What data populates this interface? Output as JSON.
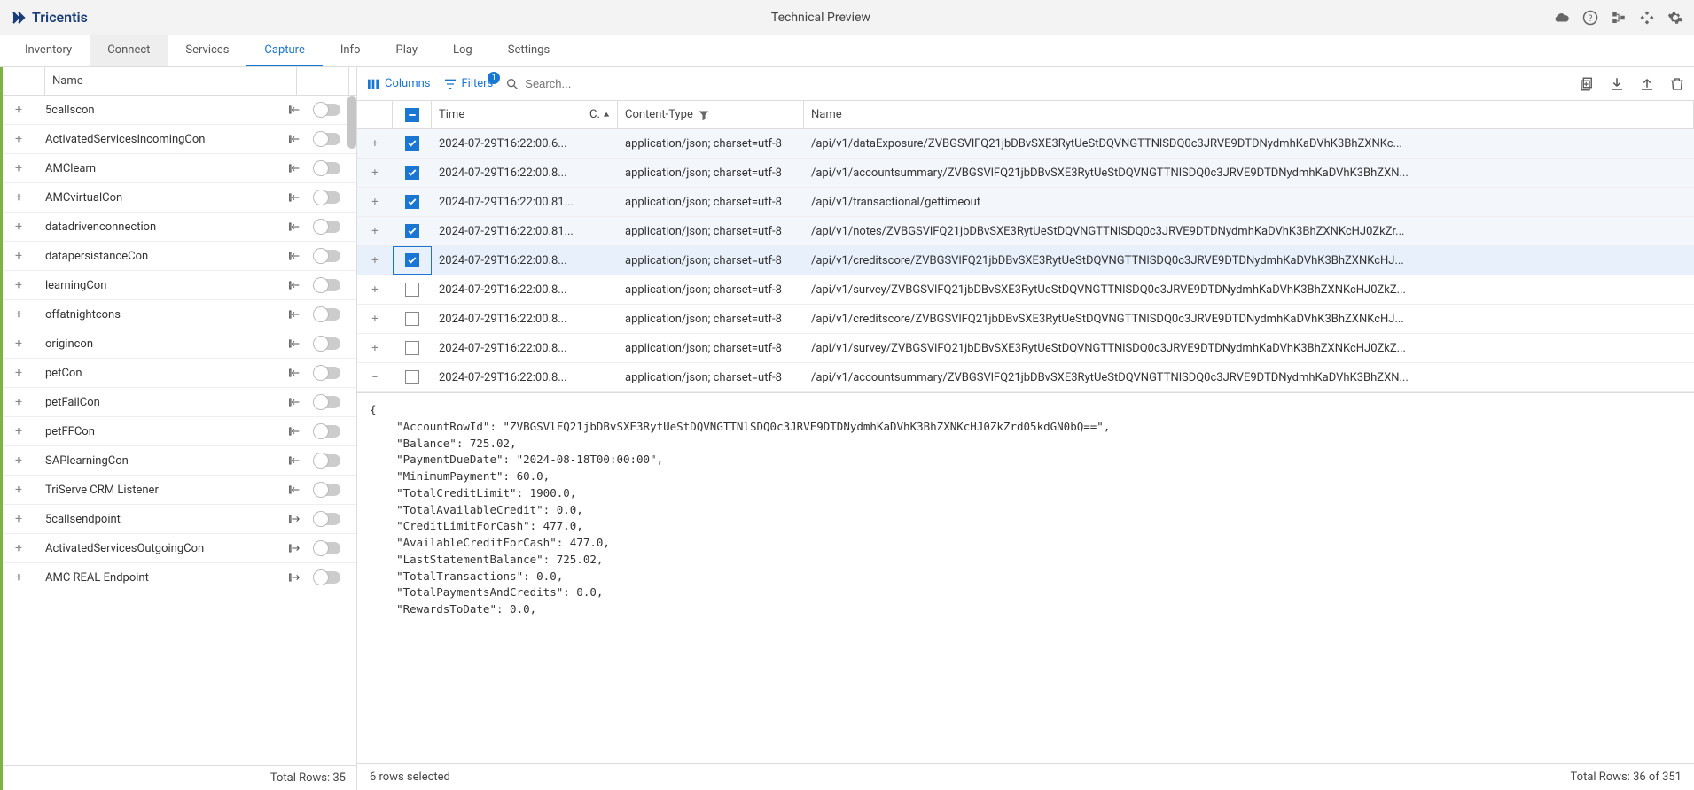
{
  "header": {
    "brand": "Tricentis",
    "title": "Technical Preview"
  },
  "tabs": [
    {
      "label": "Inventory",
      "active": false,
      "highlight": false
    },
    {
      "label": "Connect",
      "active": false,
      "highlight": true
    },
    {
      "label": "Services",
      "active": false,
      "highlight": false
    },
    {
      "label": "Capture",
      "active": true,
      "highlight": false
    },
    {
      "label": "Info",
      "active": false,
      "highlight": false
    },
    {
      "label": "Play",
      "active": false,
      "highlight": false
    },
    {
      "label": "Log",
      "active": false,
      "highlight": false
    },
    {
      "label": "Settings",
      "active": false,
      "highlight": false
    }
  ],
  "sidebar": {
    "header_label": "Name",
    "items": [
      {
        "name": "5callscon",
        "dir": "in"
      },
      {
        "name": "ActivatedServicesIncomingCon",
        "dir": "in"
      },
      {
        "name": "AMClearn",
        "dir": "in"
      },
      {
        "name": "AMCvirtualCon",
        "dir": "in"
      },
      {
        "name": "datadrivenconnection",
        "dir": "in"
      },
      {
        "name": "datapersistanceCon",
        "dir": "in"
      },
      {
        "name": "learningCon",
        "dir": "in"
      },
      {
        "name": "offatnightcons",
        "dir": "in"
      },
      {
        "name": "origincon",
        "dir": "in"
      },
      {
        "name": "petCon",
        "dir": "in"
      },
      {
        "name": "petFailCon",
        "dir": "in"
      },
      {
        "name": "petFFCon",
        "dir": "in"
      },
      {
        "name": "SAPlearningCon",
        "dir": "in"
      },
      {
        "name": "TriServe CRM Listener",
        "dir": "in"
      },
      {
        "name": "5callsendpoint",
        "dir": "out"
      },
      {
        "name": "ActivatedServicesOutgoingCon",
        "dir": "out"
      },
      {
        "name": "AMC REAL Endpoint",
        "dir": "out"
      }
    ],
    "footer": "Total Rows: 35"
  },
  "toolbar": {
    "columns_label": "Columns",
    "filters_label": "Filters",
    "filters_badge": "1",
    "search_placeholder": "Search..."
  },
  "grid": {
    "headers": {
      "time": "Time",
      "co": "C.",
      "content_type": "Content-Type",
      "name": "Name"
    },
    "rows": [
      {
        "checked": true,
        "exp": "+",
        "time": "2024-07-29T16:22:00.6...",
        "ct": "application/json; charset=utf-8",
        "name": "/api/v1/dataExposure/ZVBGSVlFQ21jbDBvSXE3RytUeStDQVNGTTNlSDQ0c3JRVE9DTDNydmhKaDVhK3BhZXNKc..."
      },
      {
        "checked": true,
        "exp": "+",
        "time": "2024-07-29T16:22:00.8...",
        "ct": "application/json; charset=utf-8",
        "name": "/api/v1/accountsummary/ZVBGSVlFQ21jbDBvSXE3RytUeStDQVNGTTNlSDQ0c3JRVE9DTDNydmhKaDVhK3BhZXN..."
      },
      {
        "checked": true,
        "exp": "+",
        "time": "2024-07-29T16:22:00.81...",
        "ct": "application/json; charset=utf-8",
        "name": "/api/v1/transactional/gettimeout"
      },
      {
        "checked": true,
        "exp": "+",
        "time": "2024-07-29T16:22:00.81...",
        "ct": "application/json; charset=utf-8",
        "name": "/api/v1/notes/ZVBGSVlFQ21jbDBvSXE3RytUeStDQVNGTTNlSDQ0c3JRVE9DTDNydmhKaDVhK3BhZXNKcHJ0ZkZr..."
      },
      {
        "checked": true,
        "exp": "+",
        "time": "2024-07-29T16:22:00.8...",
        "ct": "application/json; charset=utf-8",
        "name": "/api/v1/creditscore/ZVBGSVlFQ21jbDBvSXE3RytUeStDQVNGTTNlSDQ0c3JRVE9DTDNydmhKaDVhK3BhZXNKcHJ...",
        "focus": true
      },
      {
        "checked": false,
        "exp": "+",
        "time": "2024-07-29T16:22:00.8...",
        "ct": "application/json; charset=utf-8",
        "name": "/api/v1/survey/ZVBGSVlFQ21jbDBvSXE3RytUeStDQVNGTTNlSDQ0c3JRVE9DTDNydmhKaDVhK3BhZXNKcHJ0ZkZ..."
      },
      {
        "checked": false,
        "exp": "+",
        "time": "2024-07-29T16:22:00.8...",
        "ct": "application/json; charset=utf-8",
        "name": "/api/v1/creditscore/ZVBGSVlFQ21jbDBvSXE3RytUeStDQVNGTTNlSDQ0c3JRVE9DTDNydmhKaDVhK3BhZXNKcHJ..."
      },
      {
        "checked": false,
        "exp": "+",
        "time": "2024-07-29T16:22:00.8...",
        "ct": "application/json; charset=utf-8",
        "name": "/api/v1/survey/ZVBGSVlFQ21jbDBvSXE3RytUeStDQVNGTTNlSDQ0c3JRVE9DTDNydmhKaDVhK3BhZXNKcHJ0ZkZ..."
      },
      {
        "checked": false,
        "exp": "−",
        "time": "2024-07-29T16:22:00.8...",
        "ct": "application/json; charset=utf-8",
        "name": "/api/v1/accountsummary/ZVBGSVlFQ21jbDBvSXE3RytUeStDQVNGTTNlSDQ0c3JRVE9DTDNydmhKaDVhK3BhZXN..."
      }
    ]
  },
  "detail_json": "{\n    \"AccountRowId\": \"ZVBGSVlFQ21jbDBvSXE3RytUeStDQVNGTTNlSDQ0c3JRVE9DTDNydmhKaDVhK3BhZXNKcHJ0ZkZrd05kdGN0bQ==\",\n    \"Balance\": 725.02,\n    \"PaymentDueDate\": \"2024-08-18T00:00:00\",\n    \"MinimumPayment\": 60.0,\n    \"TotalCreditLimit\": 1900.0,\n    \"TotalAvailableCredit\": 0.0,\n    \"CreditLimitForCash\": 477.0,\n    \"AvailableCreditForCash\": 477.0,\n    \"LastStatementBalance\": 725.02,\n    \"TotalTransactions\": 0.0,\n    \"TotalPaymentsAndCredits\": 0.0,\n    \"RewardsToDate\": 0.0,",
  "footer": {
    "left": "6 rows selected",
    "right": "Total Rows: 36 of 351"
  },
  "colors": {
    "primary": "#1976d2",
    "brand": "#1a3e7a",
    "accent_green": "#7cb342",
    "border": "#dddddd",
    "row_selected": "#f3f7fc",
    "row_focus": "#e7f0fb"
  }
}
